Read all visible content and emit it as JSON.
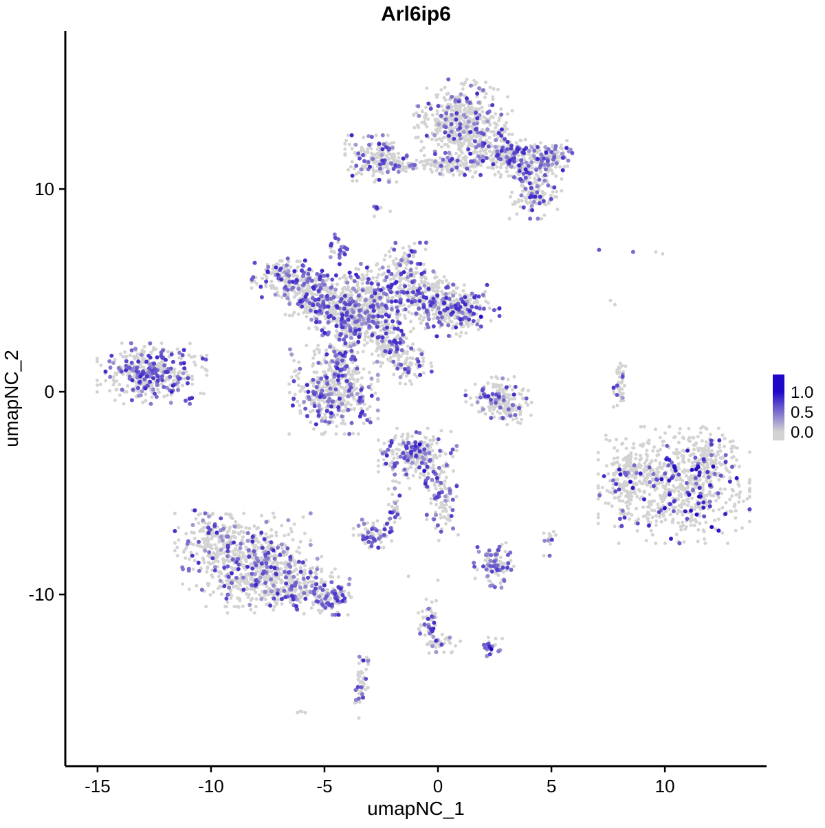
{
  "title": "Arl6ip6",
  "axes": {
    "x": {
      "label": "umapNC_1",
      "ticks": [
        -15,
        -10,
        -5,
        0,
        5,
        10
      ]
    },
    "y": {
      "label": "umapNC_2",
      "ticks": [
        -10,
        0,
        10
      ]
    }
  },
  "legend": {
    "labels": [
      "1.0",
      "0.5",
      "0.0"
    ],
    "low_color": "#D3D3D3",
    "high_color": "#2007C8"
  },
  "chart_data": {
    "type": "scatter",
    "title": "Arl6ip6",
    "xlabel": "umapNC_1",
    "ylabel": "umapNC_2",
    "xlim": [
      -16.42,
      14.48
    ],
    "ylim": [
      -18.47,
      17.8
    ],
    "grid": false,
    "legend_position": "right",
    "color_scale": {
      "low": "#D3D3D3",
      "high": "#2007C8",
      "ticks": [
        1.0,
        0.5,
        0.0
      ]
    },
    "point_color_meaning": "Arl6ip6 expression level (0 = grey, 1 = blue)",
    "seed": 42,
    "cluster_fields": [
      "x",
      "y",
      "sx",
      "sy",
      "n",
      "expr_fraction",
      "vmin",
      "vmax"
    ],
    "clusters": [
      [
        1.0,
        13.8,
        0.9,
        0.7,
        260,
        0.18
      ],
      [
        1.2,
        12.7,
        0.9,
        0.7,
        260,
        0.18
      ],
      [
        2.6,
        12.0,
        0.7,
        0.5,
        140,
        0.22
      ],
      [
        3.9,
        11.4,
        0.8,
        0.45,
        200,
        0.32
      ],
      [
        5.0,
        11.7,
        0.4,
        0.3,
        60,
        0.25
      ],
      [
        4.3,
        9.8,
        0.5,
        0.55,
        150,
        0.18
      ],
      [
        -2.6,
        11.5,
        0.65,
        0.5,
        170,
        0.22
      ],
      [
        -0.7,
        11.25,
        1.0,
        0.18,
        110,
        0.12
      ],
      [
        0.8,
        11.1,
        0.5,
        0.3,
        60,
        0.15
      ],
      [
        -2.7,
        9.0,
        0.15,
        0.15,
        6,
        0.5
      ],
      [
        -4.4,
        7.0,
        0.22,
        0.33,
        26,
        0.45
      ],
      [
        -6.6,
        5.6,
        0.7,
        0.45,
        160,
        0.3
      ],
      [
        -5.5,
        4.7,
        0.7,
        0.55,
        190,
        0.25
      ],
      [
        -4.3,
        4.2,
        0.8,
        0.6,
        240,
        0.28
      ],
      [
        -3.0,
        4.7,
        0.55,
        0.7,
        170,
        0.3
      ],
      [
        -1.4,
        5.4,
        0.55,
        0.85,
        210,
        0.3
      ],
      [
        -0.3,
        4.5,
        0.65,
        0.6,
        210,
        0.22
      ],
      [
        1.1,
        4.0,
        0.7,
        0.55,
        200,
        0.3
      ],
      [
        -3.4,
        3.2,
        0.75,
        0.55,
        210,
        0.3
      ],
      [
        -2.0,
        2.2,
        0.5,
        0.45,
        110,
        0.25
      ],
      [
        -1.2,
        1.3,
        0.4,
        0.4,
        70,
        0.2
      ],
      [
        -4.6,
        0.1,
        0.85,
        0.95,
        430,
        0.3
      ],
      [
        -4.3,
        1.7,
        0.3,
        0.5,
        70,
        0.25
      ],
      [
        -12.6,
        0.9,
        1.05,
        0.65,
        400,
        0.38,
        0.3,
        0.85
      ],
      [
        2.6,
        -0.3,
        0.6,
        0.45,
        150,
        0.2
      ],
      [
        3.3,
        -1.0,
        0.4,
        0.3,
        50,
        0.12
      ],
      [
        8.0,
        0.4,
        0.14,
        0.5,
        45,
        0.08
      ],
      [
        10.4,
        -4.6,
        1.45,
        1.25,
        650,
        0.12,
        0.4,
        1.0
      ],
      [
        8.4,
        -4.2,
        0.5,
        0.8,
        130,
        0.12,
        0.4,
        1.0
      ],
      [
        11.9,
        -3.4,
        0.6,
        0.7,
        120,
        0.12,
        0.4,
        1.0
      ],
      [
        -0.9,
        -3.3,
        0.75,
        0.65,
        270,
        0.25
      ],
      [
        0.2,
        -5.5,
        0.3,
        0.8,
        80,
        0.2
      ],
      [
        -1.9,
        -5.9,
        0.15,
        0.4,
        25,
        0.2
      ],
      [
        -2.8,
        -7.0,
        0.4,
        0.3,
        70,
        0.5,
        0.3,
        0.8
      ],
      [
        -8.6,
        -8.3,
        1.3,
        1.0,
        520,
        0.22
      ],
      [
        -7.2,
        -9.3,
        0.9,
        0.7,
        220,
        0.22
      ],
      [
        -5.5,
        -9.8,
        0.7,
        0.5,
        140,
        0.3
      ],
      [
        -4.5,
        -10.2,
        0.35,
        0.35,
        60,
        0.45,
        0.3,
        0.8
      ],
      [
        -9.9,
        -7.0,
        0.5,
        0.5,
        90,
        0.2
      ],
      [
        2.5,
        -8.6,
        0.4,
        0.5,
        90,
        0.45,
        0.3,
        0.8
      ],
      [
        4.9,
        -7.4,
        0.2,
        0.3,
        14,
        0.3
      ],
      [
        -0.4,
        -11.5,
        0.25,
        0.55,
        55,
        0.12
      ],
      [
        0.3,
        -12.4,
        0.3,
        0.25,
        28,
        0.15
      ],
      [
        2.3,
        -12.6,
        0.3,
        0.22,
        20,
        0.3
      ],
      [
        -3.4,
        -14.6,
        0.14,
        0.65,
        45,
        0.3,
        0.3,
        0.7
      ],
      [
        -6.0,
        -15.8,
        0.15,
        0.12,
        4,
        0.0
      ],
      [
        -3.3,
        -13.4,
        0.15,
        0.2,
        8,
        0.2
      ]
    ],
    "single_grey_points": [
      [
        9.6,
        6.9
      ],
      [
        9.9,
        6.8
      ],
      [
        7.6,
        4.5
      ],
      [
        7.8,
        4.3
      ],
      [
        -2.1,
        8.9
      ],
      [
        0.0,
        -9.3
      ],
      [
        -1.3,
        -9.1
      ],
      [
        5.1,
        -6.9
      ]
    ],
    "highlight_points": [
      [
        1.9,
        3.7,
        1.0
      ],
      [
        -0.8,
        -2.6,
        1.0
      ],
      [
        -0.6,
        -3.9,
        0.95
      ],
      [
        2.35,
        -12.7,
        1.0
      ],
      [
        11.0,
        -2.9,
        0.9
      ],
      [
        9.3,
        -6.6,
        0.85
      ],
      [
        7.1,
        7.0,
        0.6
      ],
      [
        8.6,
        6.9,
        0.5
      ],
      [
        12.4,
        -2.4,
        0.8
      ],
      [
        10.9,
        -5.9,
        0.9
      ],
      [
        -1.5,
        5.9,
        0.85
      ],
      [
        -4.9,
        0.7,
        0.8
      ]
    ]
  }
}
